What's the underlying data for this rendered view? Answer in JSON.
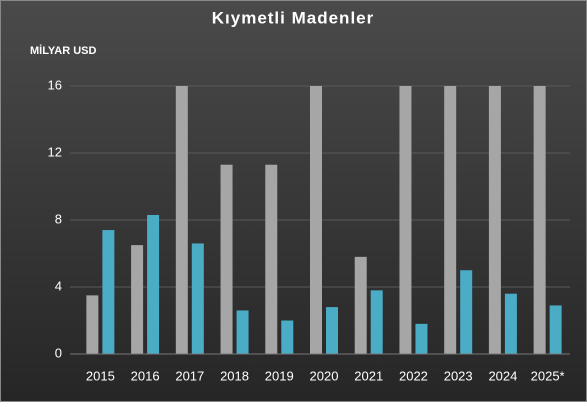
{
  "chart_data": {
    "type": "bar",
    "title": "Kıymetli Madenler",
    "y_label": "MİLYAR USD",
    "categories": [
      "2015",
      "2016",
      "2017",
      "2018",
      "2019",
      "2020",
      "2021",
      "2022",
      "2023",
      "2024",
      "2025*"
    ],
    "series": [
      {
        "color": "#a6a6a6",
        "values": [
          3.5,
          6.5,
          16,
          11.3,
          11.3,
          16,
          5.8,
          16,
          16,
          16,
          16
        ]
      },
      {
        "color": "#4bacc6",
        "values": [
          7.4,
          8.3,
          6.6,
          2.6,
          2.0,
          2.8,
          3.8,
          1.8,
          5.0,
          3.6,
          2.9
        ]
      }
    ],
    "ylim": [
      0,
      16
    ],
    "yticks": [
      0,
      4,
      8,
      12,
      16
    ],
    "grid": true
  }
}
